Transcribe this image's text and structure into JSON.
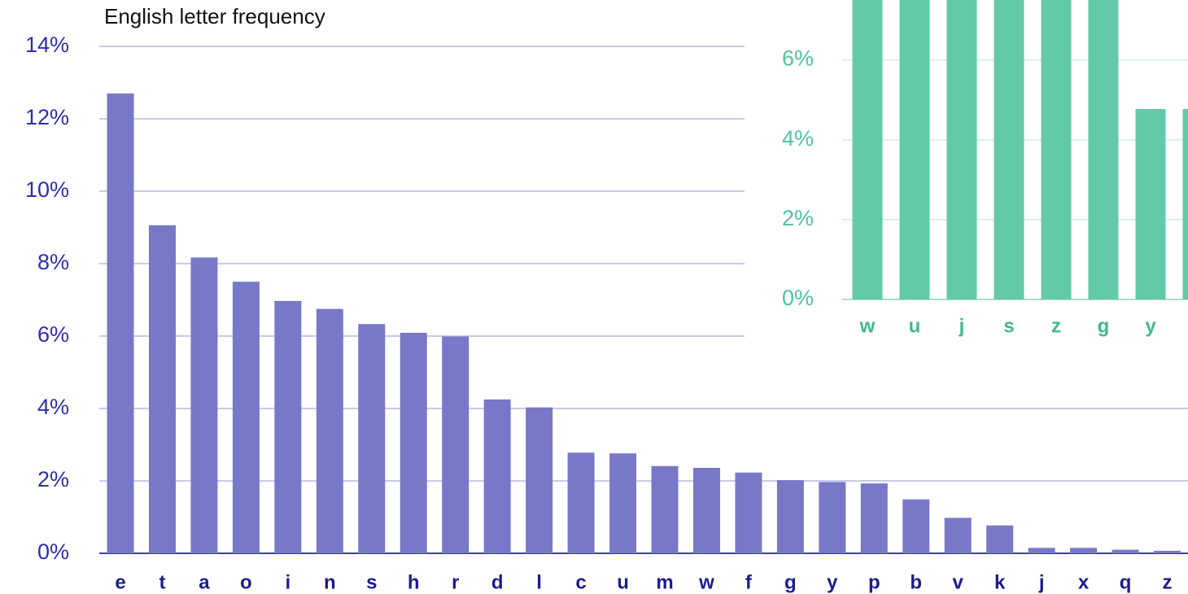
{
  "chart_data": [
    {
      "type": "bar",
      "title": "English letter frequency",
      "categories": [
        "e",
        "t",
        "a",
        "o",
        "i",
        "n",
        "s",
        "h",
        "r",
        "d",
        "l",
        "c",
        "u",
        "m",
        "w",
        "f",
        "g",
        "y",
        "p",
        "b",
        "v",
        "k",
        "j",
        "x",
        "q",
        "z"
      ],
      "values": [
        12.7,
        9.06,
        8.17,
        7.5,
        6.97,
        6.75,
        6.33,
        6.09,
        5.99,
        4.25,
        4.03,
        2.78,
        2.76,
        2.41,
        2.36,
        2.23,
        2.02,
        1.97,
        1.93,
        1.49,
        0.98,
        0.77,
        0.15,
        0.15,
        0.1,
        0.07
      ],
      "color": "#7878c8",
      "ylim": [
        0,
        14
      ],
      "yticks": [
        {
          "value": 0,
          "label": "0%"
        },
        {
          "value": 2,
          "label": "2%"
        },
        {
          "value": 4,
          "label": "4%"
        },
        {
          "value": 6,
          "label": "6%"
        },
        {
          "value": 8,
          "label": "8%"
        },
        {
          "value": 10,
          "label": "10%"
        },
        {
          "value": 12,
          "label": "12%"
        },
        {
          "value": 14,
          "label": "14%"
        }
      ],
      "grid": true
    },
    {
      "type": "bar",
      "categories": [
        "w",
        "u",
        "j",
        "s",
        "z",
        "g",
        "y",
        null
      ],
      "values": [
        8,
        8,
        8,
        8,
        8,
        8,
        4.77,
        4.77
      ],
      "color": "#62c9a9",
      "ylim": [
        0,
        7.5
      ],
      "yticks": [
        {
          "value": 0,
          "label": "0%"
        },
        {
          "value": 2,
          "label": "2%"
        },
        {
          "value": 4,
          "label": "4%"
        },
        {
          "value": 6,
          "label": "6%"
        }
      ],
      "grid": true
    }
  ]
}
